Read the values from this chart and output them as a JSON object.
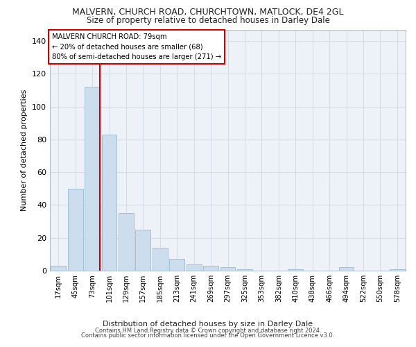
{
  "title_line1": "MALVERN, CHURCH ROAD, CHURCHTOWN, MATLOCK, DE4 2GL",
  "title_line2": "Size of property relative to detached houses in Darley Dale",
  "xlabel": "Distribution of detached houses by size in Darley Dale",
  "ylabel": "Number of detached properties",
  "bar_color": "#ccdded",
  "bar_edge_color": "#99bbd4",
  "grid_color": "#d4dce8",
  "background_color": "#eef2f8",
  "annotation_box_color": "#ffffff",
  "annotation_border_color": "#cc0000",
  "red_line_color": "#cc0000",
  "categories": [
    "17sqm",
    "45sqm",
    "73sqm",
    "101sqm",
    "129sqm",
    "157sqm",
    "185sqm",
    "213sqm",
    "241sqm",
    "269sqm",
    "297sqm",
    "325sqm",
    "353sqm",
    "382sqm",
    "410sqm",
    "438sqm",
    "466sqm",
    "494sqm",
    "522sqm",
    "550sqm",
    "578sqm"
  ],
  "values": [
    3,
    50,
    112,
    83,
    35,
    25,
    14,
    7,
    4,
    3,
    2,
    1,
    0,
    0,
    1,
    0,
    0,
    2,
    0,
    0,
    1
  ],
  "ylim": [
    0,
    147
  ],
  "yticks": [
    0,
    20,
    40,
    60,
    80,
    100,
    120,
    140
  ],
  "property_name": "MALVERN CHURCH ROAD: 79sqm",
  "pct_smaller": 20,
  "count_smaller": 68,
  "pct_larger_semi": 80,
  "count_larger_semi": 271,
  "footer_line1": "Contains HM Land Registry data © Crown copyright and database right 2024.",
  "footer_line2": "Contains public sector information licensed under the Open Government Licence v3.0."
}
